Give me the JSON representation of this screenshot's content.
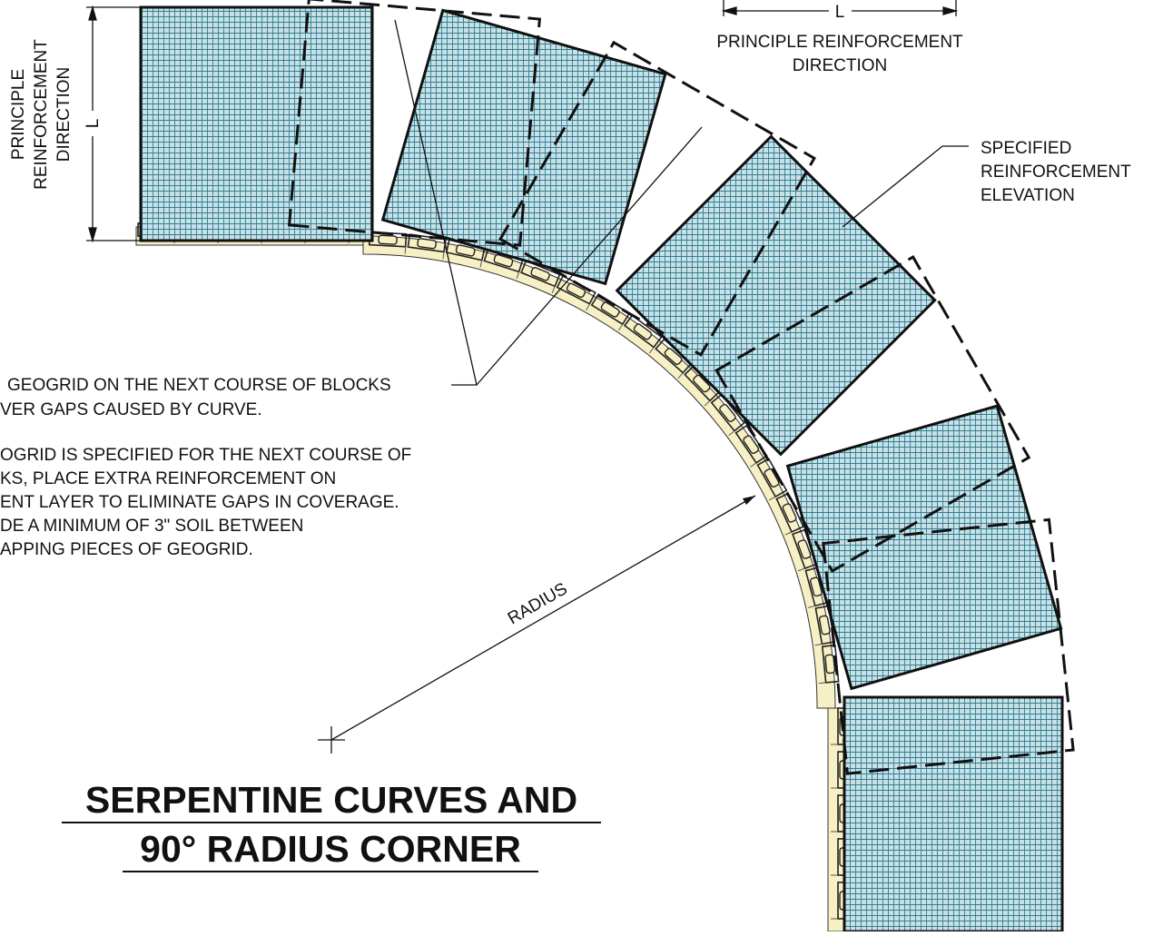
{
  "dimensions": {
    "left": {
      "label": "L",
      "text": [
        "PRINCIPLE",
        "REINFORCEMENT",
        "DIRECTION"
      ]
    },
    "top": {
      "label": "L",
      "text": [
        "PRINCIPLE REINFORCEMENT",
        "DIRECTION"
      ]
    }
  },
  "callouts": {
    "elevation": [
      "SPECIFIED",
      "REINFORCEMENT",
      "ELEVATION"
    ],
    "radius": "RADIUS"
  },
  "notes": [
    [
      "GEOGRID ON THE NEXT COURSE OF BLOCKS",
      "VER GAPS CAUSED BY CURVE."
    ],
    [
      "OGRID IS SPECIFIED FOR THE NEXT COURSE OF",
      "KS, PLACE EXTRA REINFORCEMENT ON",
      "ENT LAYER TO ELIMINATE GAPS IN COVERAGE.",
      "DE A MINIMUM OF 3\" SOIL BETWEEN",
      "APPING PIECES OF GEOGRID."
    ]
  ],
  "title": [
    "SERPENTINE CURVES AND",
    "90° RADIUS CORNER"
  ]
}
